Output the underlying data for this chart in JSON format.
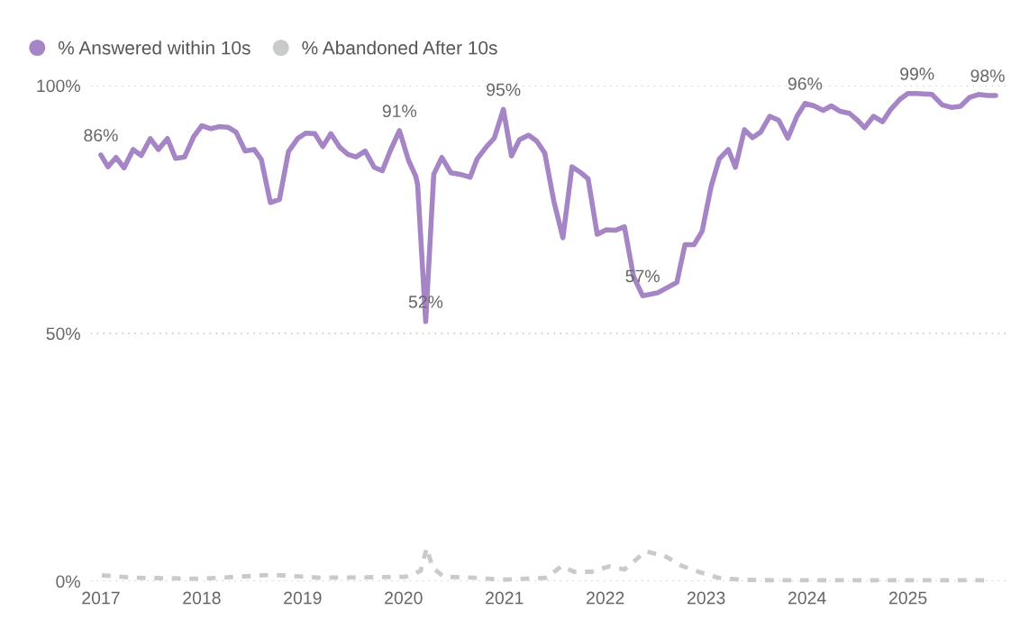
{
  "chart_data": {
    "type": "line",
    "series": [
      {
        "name": "% Answered within 10s",
        "color": "#a585c5",
        "line_style": "solid",
        "x": [
          2017.0,
          2017.07,
          2017.15,
          2017.23,
          2017.32,
          2017.4,
          2017.49,
          2017.57,
          2017.66,
          2017.74,
          2017.83,
          2017.92,
          2018.0,
          2018.09,
          2018.17,
          2018.26,
          2018.34,
          2018.43,
          2018.52,
          2018.59,
          2018.68,
          2018.77,
          2018.86,
          2018.95,
          2019.03,
          2019.12,
          2019.2,
          2019.28,
          2019.37,
          2019.45,
          2019.53,
          2019.62,
          2019.71,
          2019.79,
          2019.87,
          2019.96,
          2020.05,
          2020.12,
          2020.14,
          2020.22,
          2020.3,
          2020.38,
          2020.47,
          2020.56,
          2020.66,
          2020.73,
          2020.82,
          2020.9,
          2020.99,
          2021.07,
          2021.15,
          2021.24,
          2021.32,
          2021.4,
          2021.49,
          2021.58,
          2021.67,
          2021.76,
          2021.83,
          2021.92,
          2022.01,
          2022.1,
          2022.19,
          2022.28,
          2022.37,
          2022.52,
          2022.71,
          2022.79,
          2022.88,
          2022.96,
          2023.05,
          2023.13,
          2023.22,
          2023.29,
          2023.38,
          2023.46,
          2023.54,
          2023.63,
          2023.72,
          2023.81,
          2023.9,
          2023.98,
          2024.07,
          2024.16,
          2024.24,
          2024.33,
          2024.42,
          2024.5,
          2024.57,
          2024.66,
          2024.75,
          2024.83,
          2024.92,
          2025.0,
          2025.09,
          2025.24,
          2025.34,
          2025.43,
          2025.52,
          2025.61,
          2025.7,
          2025.79,
          2025.87
        ],
        "values": [
          86,
          83.6,
          85.5,
          83.4,
          87.1,
          85.9,
          89.3,
          87.1,
          89.3,
          85.3,
          85.6,
          89.7,
          91.9,
          91.3,
          91.7,
          91.6,
          90.6,
          86.8,
          87.1,
          85.1,
          76.4,
          77.0,
          86.7,
          89.3,
          90.4,
          90.3,
          87.7,
          90.3,
          87.5,
          86.1,
          85.6,
          86.8,
          83.5,
          82.8,
          86.9,
          90.9,
          84.9,
          81.8,
          80.0,
          52.4,
          82.1,
          85.5,
          82.4,
          82.1,
          81.5,
          85.2,
          87.6,
          89.4,
          95.2,
          85.8,
          89.1,
          90.0,
          88.8,
          86.4,
          76.7,
          69.3,
          83.6,
          82.4,
          81.2,
          70.0,
          70.9,
          70.8,
          71.5,
          61.5,
          57.6,
          58.2,
          60.3,
          67.9,
          67.9,
          70.6,
          79.7,
          85.2,
          87.1,
          83.5,
          91.1,
          89.5,
          90.6,
          93.8,
          93.0,
          89.4,
          93.8,
          96.4,
          95.9,
          95.0,
          95.9,
          94.8,
          94.4,
          93.0,
          91.5,
          93.8,
          92.7,
          95.2,
          97.2,
          98.4,
          98.4,
          98.2,
          96.1,
          95.6,
          95.8,
          97.6,
          98.2,
          98.0,
          98.0
        ]
      },
      {
        "name": "% Abandoned After 10s",
        "color": "#c8cbc9",
        "line_style": "dashed",
        "x": [
          2017.01,
          2017.34,
          2017.99,
          2018.71,
          2019.18,
          2020.02,
          2020.17,
          2020.23,
          2020.29,
          2020.4,
          2020.73,
          2020.97,
          2021.42,
          2021.57,
          2021.69,
          2021.86,
          2022.04,
          2022.19,
          2022.4,
          2022.58,
          2022.76,
          2022.94,
          2023.12,
          2023.35,
          2023.65,
          2025.79
        ],
        "values": [
          1.2,
          0.7,
          0.5,
          1.3,
          0.7,
          0.9,
          2.1,
          6.7,
          2.7,
          0.9,
          0.7,
          0.3,
          0.7,
          3.1,
          1.9,
          1.9,
          3.0,
          2.4,
          6.0,
          5.2,
          3.1,
          1.8,
          0.7,
          0.3,
          0.2,
          0.2
        ]
      }
    ],
    "annotations": [
      {
        "text": "86%",
        "x": 2017.0,
        "y": 86
      },
      {
        "text": "91%",
        "x": 2019.96,
        "y": 90.9
      },
      {
        "text": "52%",
        "x": 2020.22,
        "y": 52.4
      },
      {
        "text": "95%",
        "x": 2020.99,
        "y": 95.2
      },
      {
        "text": "57%",
        "x": 2022.37,
        "y": 57.6
      },
      {
        "text": "96%",
        "x": 2023.98,
        "y": 96.4
      },
      {
        "text": "99%",
        "x": 2025.09,
        "y": 98.4
      },
      {
        "text": "98%",
        "x": 2025.79,
        "y": 98.0
      }
    ],
    "xlim": [
      2016.9,
      2026.0
    ],
    "xticks": [
      2017,
      2018,
      2019,
      2020,
      2021,
      2022,
      2023,
      2024,
      2025
    ],
    "ylim": [
      0,
      100
    ],
    "yticks": [
      {
        "value": 0,
        "label": "0%"
      },
      {
        "value": 50,
        "label": "50%"
      },
      {
        "value": 100,
        "label": "100%"
      }
    ],
    "grid": "y",
    "legend": "top left",
    "marker": "none"
  }
}
